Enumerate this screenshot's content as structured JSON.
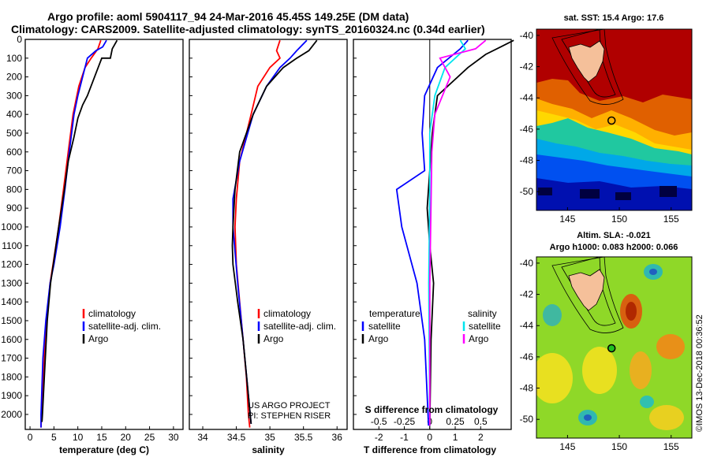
{
  "title_line1": "Argo profile: aoml 5904117_94 24-Mar-2016 45.45S 149.25E (DM data)",
  "title_line2": "Climatology: CARS2009. Satellite-adjusted climatology: synTS_20160324.nc (0.34d earlier)",
  "credit_line1": "US ARGO PROJECT",
  "credit_line2": "PI: STEPHEN RISER",
  "imos_stamp": "©IMOS 13-Dec-2018 00:36:52",
  "colors": {
    "climatology": "#ff0000",
    "satellite": "#0000ff",
    "argo": "#000000",
    "salinity_satellite": "#00e5ee",
    "salinity_argo": "#ff00ff"
  },
  "chart_data": [
    {
      "type": "line",
      "xlabel": "temperature (deg C)",
      "ylabel": "",
      "xlim": [
        -1,
        32
      ],
      "ylim": [
        2080,
        0
      ],
      "x_ticks": [
        "0",
        "5",
        "10",
        "15",
        "20",
        "25",
        "30"
      ],
      "y_ticks": [
        "0",
        "100",
        "200",
        "300",
        "400",
        "500",
        "600",
        "700",
        "800",
        "900",
        "1000",
        "1100",
        "1200",
        "1300",
        "1400",
        "1500",
        "1600",
        "1700",
        "1800",
        "1900",
        "2000"
      ],
      "legend": [
        "climatology",
        "satellite-adj. clim.",
        "Argo"
      ],
      "series": [
        {
          "name": "climatology",
          "color_key": "climatology",
          "x": [
            14.8,
            14.2,
            12.8,
            11.5,
            10.2,
            9.0,
            8.0,
            7.0,
            6.0,
            4.8,
            4.2,
            3.5,
            3.0,
            2.6,
            2.4,
            2.3
          ],
          "y": [
            5,
            50,
            100,
            150,
            250,
            400,
            600,
            800,
            1000,
            1200,
            1300,
            1500,
            1700,
            1900,
            2000,
            2070
          ]
        },
        {
          "name": "satellite-adj. clim.",
          "color_key": "satellite",
          "x": [
            16.0,
            15.2,
            13.8,
            12.0,
            10.0,
            9.2,
            8.2,
            7.3,
            6.3,
            5.0,
            4.2,
            3.3,
            2.7,
            2.3,
            2.3
          ],
          "y": [
            5,
            40,
            60,
            100,
            300,
            400,
            600,
            800,
            1000,
            1200,
            1300,
            1500,
            1700,
            2000,
            2070
          ]
        },
        {
          "name": "Argo",
          "color_key": "argo",
          "x": [
            18.2,
            17.2,
            16.8,
            15.0,
            13.5,
            12.0,
            11.0,
            10.0,
            9.2,
            8.0,
            7.2,
            6.0,
            4.3,
            3.6,
            3.0,
            2.6,
            2.5
          ],
          "y": [
            5,
            50,
            100,
            100,
            200,
            300,
            350,
            420,
            520,
            650,
            800,
            1000,
            1300,
            1500,
            1800,
            2000,
            2040
          ]
        }
      ]
    },
    {
      "type": "line",
      "xlabel": "salinity",
      "ylabel": "",
      "xlim": [
        33.8,
        36.15
      ],
      "ylim": [
        2080,
        0
      ],
      "x_ticks": [
        "34",
        "34.5",
        "35",
        "35.5",
        "36"
      ],
      "legend": [
        "climatology",
        "satellite-adj. clim.",
        "Argo"
      ],
      "series": [
        {
          "name": "climatology",
          "color_key": "climatology",
          "x": [
            35.15,
            35.1,
            35.15,
            35.0,
            34.82,
            34.72,
            34.55,
            34.5,
            34.48,
            34.5,
            34.55,
            34.6,
            34.65,
            34.68,
            34.7
          ],
          "y": [
            5,
            60,
            100,
            150,
            250,
            400,
            650,
            850,
            1000,
            1200,
            1400,
            1600,
            1800,
            2000,
            2070
          ]
        },
        {
          "name": "satellite-adj. clim.",
          "color_key": "satellite",
          "x": [
            35.55,
            35.4,
            35.3,
            35.15,
            34.95,
            34.75,
            34.55,
            34.45,
            34.45,
            34.52,
            34.6,
            34.68,
            34.72
          ],
          "y": [
            5,
            60,
            100,
            150,
            250,
            400,
            650,
            850,
            1000,
            1300,
            1600,
            1900,
            2050
          ]
        },
        {
          "name": "Argo",
          "color_key": "argo",
          "x": [
            35.7,
            35.58,
            35.4,
            35.2,
            34.95,
            34.75,
            34.55,
            34.48,
            34.45,
            34.44,
            34.45,
            34.52,
            34.6,
            34.68,
            34.72
          ],
          "y": [
            5,
            60,
            100,
            150,
            250,
            400,
            600,
            800,
            1000,
            1100,
            1200,
            1400,
            1600,
            1900,
            2050
          ]
        }
      ]
    },
    {
      "type": "line",
      "xlabel": "T difference from climatology",
      "secondary_xlabel": "S difference from climatology",
      "ylabel": "",
      "xlim": [
        -3,
        3.2
      ],
      "ylim": [
        2080,
        0
      ],
      "x_ticks": [
        "-2",
        "-1",
        "0",
        "1",
        "2"
      ],
      "secondary_x_ticks": [
        "-0.5",
        "-0.25",
        "0",
        "0.25",
        "0.5"
      ],
      "legend_left_title": "temperature",
      "legend_left": [
        "satellite",
        "Argo"
      ],
      "legend_right_title": "salinity",
      "legend_right": [
        "satellite",
        "Argo"
      ],
      "series": [
        {
          "name": "satellite",
          "quantity": "temperature",
          "color_key": "satellite",
          "x": [
            1.5,
            1.2,
            0.3,
            -0.2,
            -0.3,
            -0.2,
            -1.3,
            -1.1,
            -0.5,
            -0.2,
            -0.05
          ],
          "y": [
            5,
            50,
            150,
            300,
            500,
            700,
            800,
            1000,
            1300,
            1600,
            2060
          ]
        },
        {
          "name": "Argo",
          "quantity": "temperature",
          "color_key": "argo",
          "x": [
            3.3,
            2.2,
            1.5,
            0.3,
            0.1,
            0.0,
            -0.1,
            0.0,
            0.15,
            0.05,
            0.0
          ],
          "y": [
            5,
            80,
            150,
            300,
            500,
            700,
            900,
            1100,
            1300,
            1600,
            2060
          ]
        },
        {
          "name": "satellite",
          "quantity": "salinity",
          "color_key": "salinity_satellite",
          "x": [
            0.3,
            0.35,
            0.15,
            0.05,
            0.0,
            0.0,
            -0.01,
            0.0
          ],
          "y": [
            5,
            50,
            150,
            300,
            500,
            800,
            1300,
            2060
          ]
        },
        {
          "name": "Argo",
          "quantity": "salinity",
          "color_key": "salinity_argo",
          "x": [
            0.55,
            0.45,
            0.1,
            0.2,
            0.05,
            0.02,
            0.0,
            0.0
          ],
          "y": [
            5,
            50,
            100,
            200,
            400,
            600,
            1300,
            2060
          ]
        }
      ]
    }
  ],
  "maps": [
    {
      "title_line1": "sat. SST: 15.4 Argo: 17.6",
      "title_line2": "",
      "x_ticks": [
        "145",
        "150",
        "155"
      ],
      "y_ticks": [
        "-40",
        "-42",
        "-44",
        "-46",
        "-48",
        "-50"
      ],
      "lon_range": [
        142,
        157
      ],
      "lat_range": [
        -51.2,
        -39.6
      ],
      "float_position": {
        "lon": 149.25,
        "lat": -45.45
      },
      "colormap": "sea surface temperature"
    },
    {
      "title_line1": "Altim. SLA: -0.021",
      "title_line2": "Argo h1000: 0.083 h2000: 0.066",
      "x_ticks": [
        "145",
        "150",
        "155"
      ],
      "y_ticks": [
        "-40",
        "-42",
        "-44",
        "-46",
        "-48",
        "-50"
      ],
      "lon_range": [
        142,
        157
      ],
      "lat_range": [
        -51.2,
        -39.6
      ],
      "float_position": {
        "lon": 149.25,
        "lat": -45.45
      },
      "colormap": "sea level anomaly"
    }
  ]
}
